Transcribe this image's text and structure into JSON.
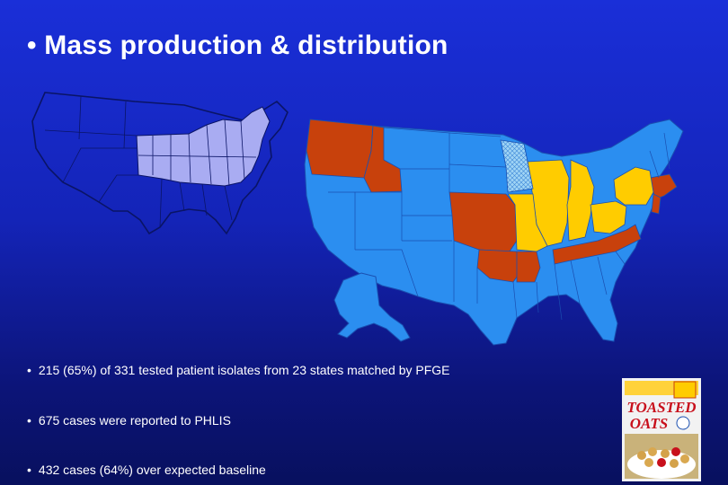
{
  "slide": {
    "title": "• Mass production & distribution",
    "bullets": [
      "215 (65%) of 331 tested patient isolates  from 23 states matched by PFGE",
      "675 cases were reported to PHLIS",
      "432 cases (64%) over expected baseline"
    ],
    "bullet_marker": "•"
  },
  "cereal_box": {
    "brand_line1": "TOASTED",
    "brand_line2": "OATS"
  },
  "colors": {
    "background": "#1424b8",
    "small_map_outline": "#0a1466",
    "small_map_highlight": "#a9acf2",
    "map_base": "#2b8ef0",
    "map_orange": "#c8410c",
    "map_yellow": "#ffcc00",
    "map_hatched": "#9fd4f5"
  }
}
